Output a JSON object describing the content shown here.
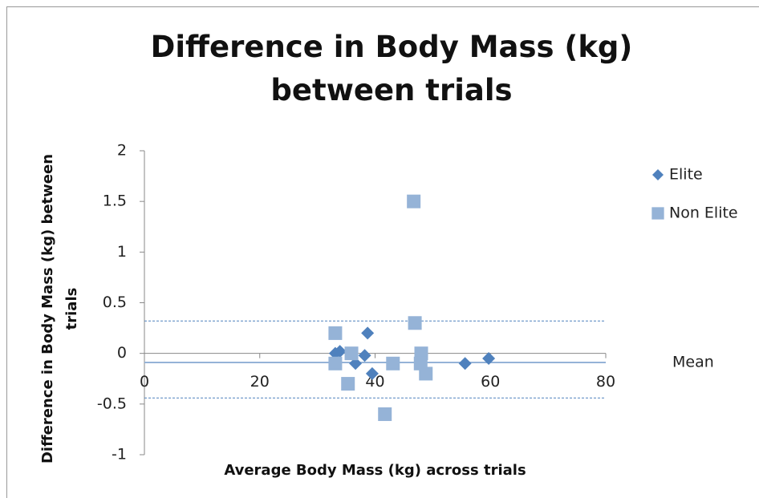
{
  "chart_data": {
    "type": "scatter",
    "title": "Difference in Body Mass (kg) between trials",
    "x_label": "Average Body Mass (kg) across trials",
    "y_label": "Difference in Body Mass (kg) between trials",
    "xlim": [
      0,
      80
    ],
    "xticks": [
      0,
      20,
      40,
      60,
      80
    ],
    "ylim": [
      -1,
      2
    ],
    "yticks": [
      -1,
      -0.5,
      0,
      0.5,
      1,
      1.5,
      2
    ],
    "legend": "right",
    "series": [
      {
        "name": "Elite",
        "color": "#4f81bd",
        "marker": "diamond",
        "x": [
          33.1,
          33.9,
          36.6,
          38.2,
          38.7,
          39.5,
          55.6,
          59.7
        ],
        "values": [
          0,
          0.02,
          -0.1,
          -0.02,
          0.2,
          -0.2,
          -0.1,
          -0.05
        ]
      },
      {
        "name": "Non Elite",
        "color": "#95b3d7",
        "marker": "square",
        "x": [
          33.1,
          33.1,
          35.9,
          35.3,
          41.7,
          43.1,
          46.7,
          46.9,
          48,
          47.9,
          48.8
        ],
        "values": [
          0.2,
          -0.1,
          0,
          -0.3,
          -0.6,
          -0.1,
          1.5,
          0.3,
          0,
          -0.1,
          -0.2
        ]
      }
    ],
    "reference_lines": [
      {
        "label": "Mean",
        "value": -0.09,
        "style": "solid",
        "color": "#95b3d7"
      },
      {
        "value": 0.32,
        "style": "dashed",
        "color": "#4f81bd"
      },
      {
        "value": -0.44,
        "style": "dashed",
        "color": "#4f81bd"
      }
    ]
  }
}
